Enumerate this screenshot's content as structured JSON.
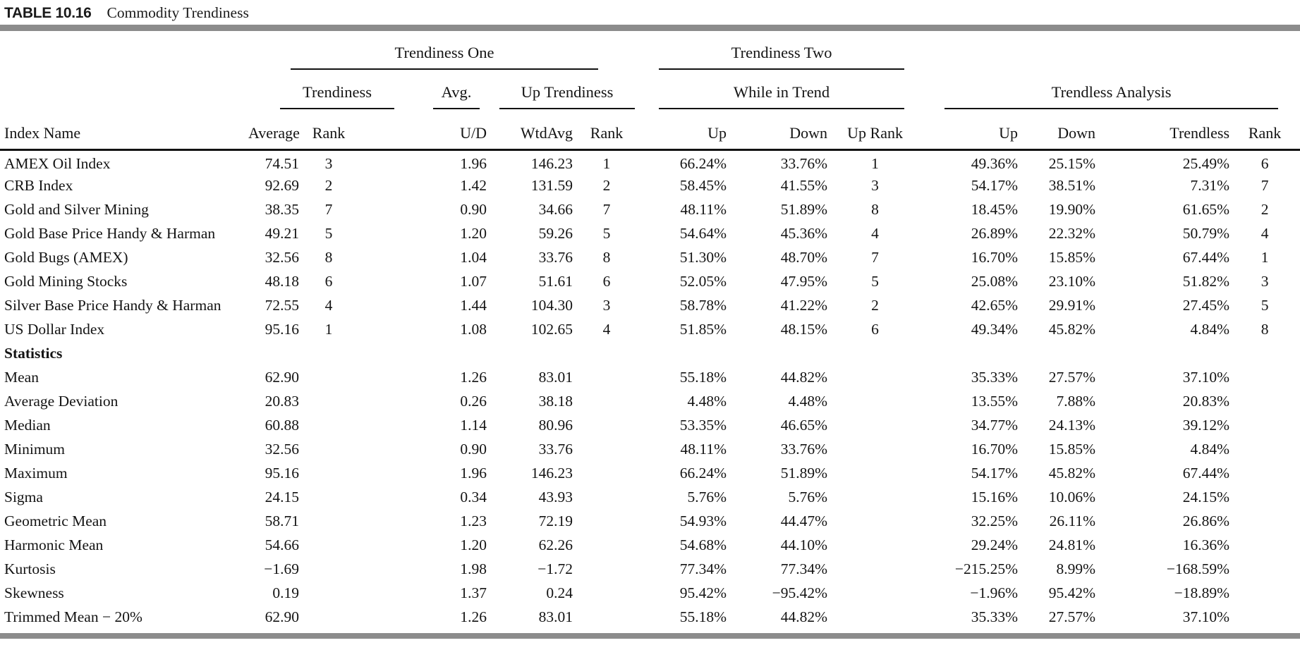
{
  "title_bar": {
    "table_label": "TABLE 10.16",
    "table_title": "Commodity Trendiness"
  },
  "colors": {
    "rule_gray": "#8c8c8c",
    "text": "#141414"
  },
  "table": {
    "groups": {
      "trendiness_one": "Trendiness One",
      "trendiness_two": "Trendiness Two"
    },
    "subgroups": {
      "trendiness": "Trendiness",
      "avg": "Avg.",
      "up_trendiness": "Up Trendiness",
      "while_in_trend": "While in Trend",
      "trendless_analysis": "Trendless Analysis"
    },
    "columns": {
      "index_name": "Index Name",
      "average": "Average",
      "rank_1": "Rank",
      "u_d": "U/D",
      "wtd_avg": "WtdAvg",
      "rank_2": "Rank",
      "up_1": "Up",
      "down_1": "Down",
      "up_rank": "Up Rank",
      "up_2": "Up",
      "down_2": "Down",
      "trendless": "Trendless",
      "rank_3": "Rank"
    },
    "rows": [
      {
        "label": "AMEX Oil Index",
        "values": [
          "74.51",
          "3",
          "1.96",
          "146.23",
          "1",
          "66.24%",
          "33.76%",
          "1",
          "49.36%",
          "25.15%",
          "25.49%",
          "6"
        ]
      },
      {
        "label": "CRB Index",
        "values": [
          "92.69",
          "2",
          "1.42",
          "131.59",
          "2",
          "58.45%",
          "41.55%",
          "3",
          "54.17%",
          "38.51%",
          "7.31%",
          "7"
        ]
      },
      {
        "label": "Gold and Silver Mining",
        "values": [
          "38.35",
          "7",
          "0.90",
          "34.66",
          "7",
          "48.11%",
          "51.89%",
          "8",
          "18.45%",
          "19.90%",
          "61.65%",
          "2"
        ]
      },
      {
        "label": "Gold Base Price Handy & Harman",
        "values": [
          "49.21",
          "5",
          "1.20",
          "59.26",
          "5",
          "54.64%",
          "45.36%",
          "4",
          "26.89%",
          "22.32%",
          "50.79%",
          "4"
        ]
      },
      {
        "label": "Gold Bugs (AMEX)",
        "values": [
          "32.56",
          "8",
          "1.04",
          "33.76",
          "8",
          "51.30%",
          "48.70%",
          "7",
          "16.70%",
          "15.85%",
          "67.44%",
          "1"
        ]
      },
      {
        "label": "Gold Mining Stocks",
        "values": [
          "48.18",
          "6",
          "1.07",
          "51.61",
          "6",
          "52.05%",
          "47.95%",
          "5",
          "25.08%",
          "23.10%",
          "51.82%",
          "3"
        ]
      },
      {
        "label": "Silver Base Price Handy & Harman",
        "values": [
          "72.55",
          "4",
          "1.44",
          "104.30",
          "3",
          "58.78%",
          "41.22%",
          "2",
          "42.65%",
          "29.91%",
          "27.45%",
          "5"
        ]
      },
      {
        "label": "US Dollar Index",
        "values": [
          "95.16",
          "1",
          "1.08",
          "102.65",
          "4",
          "51.85%",
          "48.15%",
          "6",
          "49.34%",
          "45.82%",
          "4.84%",
          "8"
        ]
      },
      {
        "label": "Statistics",
        "section": true,
        "values": []
      },
      {
        "label": "Mean",
        "values": [
          "62.90",
          "",
          "1.26",
          "83.01",
          "",
          "55.18%",
          "44.82%",
          "",
          "35.33%",
          "27.57%",
          "37.10%",
          ""
        ]
      },
      {
        "label": "Average Deviation",
        "values": [
          "20.83",
          "",
          "0.26",
          "38.18",
          "",
          "4.48%",
          "4.48%",
          "",
          "13.55%",
          "7.88%",
          "20.83%",
          ""
        ]
      },
      {
        "label": "Median",
        "values": [
          "60.88",
          "",
          "1.14",
          "80.96",
          "",
          "53.35%",
          "46.65%",
          "",
          "34.77%",
          "24.13%",
          "39.12%",
          ""
        ]
      },
      {
        "label": "Minimum",
        "values": [
          "32.56",
          "",
          "0.90",
          "33.76",
          "",
          "48.11%",
          "33.76%",
          "",
          "16.70%",
          "15.85%",
          "4.84%",
          ""
        ]
      },
      {
        "label": "Maximum",
        "values": [
          "95.16",
          "",
          "1.96",
          "146.23",
          "",
          "66.24%",
          "51.89%",
          "",
          "54.17%",
          "45.82%",
          "67.44%",
          ""
        ]
      },
      {
        "label": "Sigma",
        "values": [
          "24.15",
          "",
          "0.34",
          "43.93",
          "",
          "5.76%",
          "5.76%",
          "",
          "15.16%",
          "10.06%",
          "24.15%",
          ""
        ]
      },
      {
        "label": "Geometric Mean",
        "values": [
          "58.71",
          "",
          "1.23",
          "72.19",
          "",
          "54.93%",
          "44.47%",
          "",
          "32.25%",
          "26.11%",
          "26.86%",
          ""
        ]
      },
      {
        "label": "Harmonic Mean",
        "values": [
          "54.66",
          "",
          "1.20",
          "62.26",
          "",
          "54.68%",
          "44.10%",
          "",
          "29.24%",
          "24.81%",
          "16.36%",
          ""
        ]
      },
      {
        "label": "Kurtosis",
        "values": [
          "−1.69",
          "",
          "1.98",
          "−1.72",
          "",
          "77.34%",
          "77.34%",
          "",
          "−215.25%",
          "8.99%",
          "−168.59%",
          ""
        ]
      },
      {
        "label": "Skewness",
        "values": [
          "0.19",
          "",
          "1.37",
          "0.24",
          "",
          "95.42%",
          "−95.42%",
          "",
          "−1.96%",
          "95.42%",
          "−18.89%",
          ""
        ]
      },
      {
        "label": "Trimmed Mean − 20%",
        "values": [
          "62.90",
          "",
          "1.26",
          "83.01",
          "",
          "55.18%",
          "44.82%",
          "",
          "35.33%",
          "27.57%",
          "37.10%",
          ""
        ]
      }
    ]
  }
}
